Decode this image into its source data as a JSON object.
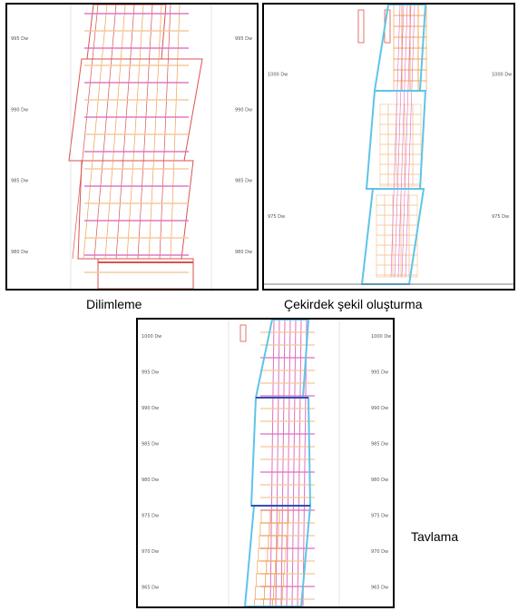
{
  "captions": {
    "slicing": "Dilimleme",
    "core_shape": "Çekirdek şekil oluşturma",
    "annealing": "Tavlama"
  },
  "panels": {
    "slicing": {
      "left_ticks": [
        "995 Dw",
        "990 Dw",
        "985 Dw",
        "980 Dw"
      ],
      "right_ticks": [
        "995 Dw",
        "990 Dw",
        "985 Dw",
        "980 Dw"
      ]
    },
    "core_shape": {
      "left_ticks": [
        "1000 Dw",
        "975 Dw"
      ],
      "right_ticks": [
        "1000 Dw",
        "975 Dw"
      ]
    },
    "annealing": {
      "left_ticks": [
        "1000 Dw",
        "995 Dw",
        "990 Dw",
        "985 Dw",
        "980 Dw",
        "975 Dw",
        "970 Dw",
        "965 Dw"
      ],
      "right_ticks": [
        "1000 Dw",
        "995 Dw",
        "990 Dw",
        "985 Dw",
        "980 Dw",
        "975 Dw",
        "970 Dw",
        "965 Dw"
      ]
    }
  },
  "colors": {
    "outline_red": "#d9534f",
    "outline_orange": "#f0a050",
    "grid_pink": "#e070c0",
    "grid_peach": "#f4c89a",
    "core_blue": "#5fc4e8",
    "core_dark_blue": "#3050b0"
  }
}
